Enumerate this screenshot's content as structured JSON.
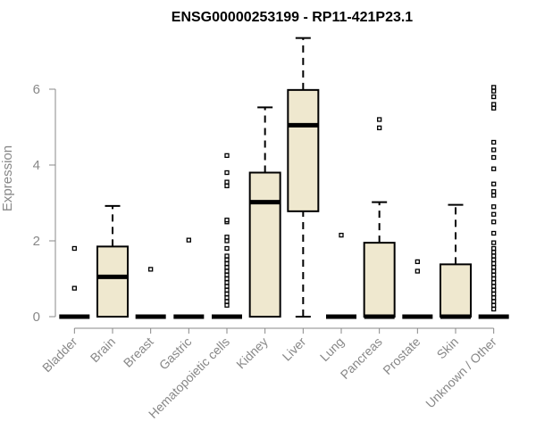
{
  "chart_data": {
    "type": "box",
    "title": "ENSG00000253199 - RP11-421P23.1",
    "ylabel": "Expression",
    "xlabel": "",
    "ylim": [
      0,
      7.5
    ],
    "yticks": [
      0,
      2,
      4,
      6
    ],
    "box_fill": "#efe8cf",
    "axis_color": "#888888",
    "categories": [
      "Bladder",
      "Brain",
      "Breast",
      "Gastric",
      "Hematopoietic cells",
      "Kidney",
      "Liver",
      "Lung",
      "Pancreas",
      "Prostate",
      "Skin",
      "Unknown / Other"
    ],
    "boxes": [
      {
        "min": 0,
        "q1": 0,
        "median": 0,
        "q3": 0,
        "max": 0,
        "outliers": [
          0.75,
          1.8
        ]
      },
      {
        "min": 0,
        "q1": 0,
        "median": 1.05,
        "q3": 1.85,
        "max": 2.92,
        "outliers": []
      },
      {
        "min": 0,
        "q1": 0,
        "median": 0,
        "q3": 0,
        "max": 0,
        "outliers": [
          1.25
        ]
      },
      {
        "min": 0,
        "q1": 0,
        "median": 0,
        "q3": 0,
        "max": 0,
        "outliers": [
          2.02
        ]
      },
      {
        "min": 0,
        "q1": 0,
        "median": 0,
        "q3": 0,
        "max": 0,
        "outliers": [
          0.3,
          0.4,
          0.5,
          0.6,
          0.7,
          0.8,
          0.9,
          1.0,
          1.1,
          1.2,
          1.3,
          1.4,
          1.5,
          1.6,
          1.8,
          2.0,
          2.1,
          2.5,
          2.55,
          3.45,
          3.55,
          3.8,
          4.25
        ]
      },
      {
        "min": 0,
        "q1": 0,
        "median": 3.02,
        "q3": 3.8,
        "max": 5.52,
        "outliers": []
      },
      {
        "min": 0,
        "q1": 2.78,
        "median": 5.05,
        "q3": 5.98,
        "max": 7.35,
        "outliers": []
      },
      {
        "min": 0,
        "q1": 0,
        "median": 0,
        "q3": 0,
        "max": 0,
        "outliers": [
          2.15
        ]
      },
      {
        "min": 0,
        "q1": 0,
        "median": 0,
        "q3": 1.95,
        "max": 3.02,
        "outliers": [
          4.98,
          5.2
        ]
      },
      {
        "min": 0,
        "q1": 0,
        "median": 0,
        "q3": 0,
        "max": 0,
        "outliers": [
          1.2,
          1.45
        ]
      },
      {
        "min": 0,
        "q1": 0,
        "median": 0,
        "q3": 1.38,
        "max": 2.95,
        "outliers": []
      },
      {
        "min": 0,
        "q1": 0,
        "median": 0,
        "q3": 0,
        "max": 0,
        "outliers": [
          0.2,
          0.3,
          0.4,
          0.5,
          0.6,
          0.7,
          0.8,
          0.9,
          1.0,
          1.1,
          1.2,
          1.3,
          1.4,
          1.5,
          1.6,
          1.7,
          1.8,
          1.95,
          2.2,
          2.5,
          2.7,
          2.9,
          3.2,
          3.3,
          3.5,
          3.9,
          4.2,
          4.4,
          4.6,
          5.5,
          5.6,
          5.8,
          5.95,
          6.05
        ]
      }
    ]
  }
}
